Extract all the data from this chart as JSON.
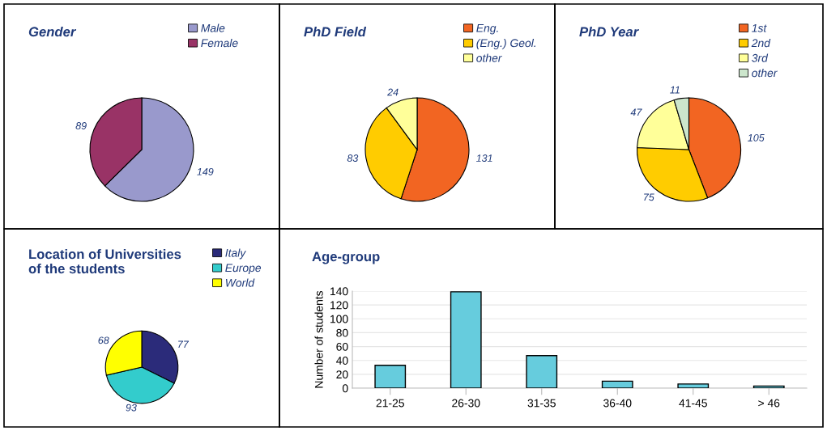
{
  "chart_data": [
    {
      "type": "pie",
      "title": "Gender",
      "categories": [
        "Male",
        "Female"
      ],
      "values": [
        149,
        89
      ],
      "colors": [
        "#9999cc",
        "#993366"
      ],
      "data_labels": true,
      "legend": "top right"
    },
    {
      "type": "pie",
      "title": "PhD Field",
      "categories": [
        "Eng.",
        "(Eng.) Geol.",
        "other"
      ],
      "values": [
        131,
        83,
        24
      ],
      "colors": [
        "#f26522",
        "#ffcc00",
        "#ffff99"
      ],
      "data_labels": true,
      "legend": "top right"
    },
    {
      "type": "pie",
      "title": "PhD Year",
      "categories": [
        "1st",
        "2nd",
        "3rd",
        "other"
      ],
      "values": [
        105,
        75,
        47,
        11
      ],
      "colors": [
        "#f26522",
        "#ffcc00",
        "#ffff99",
        "#cce6cc"
      ],
      "data_labels": true,
      "legend": "top right"
    },
    {
      "type": "pie",
      "title": "Location of Universities\nof the students",
      "categories": [
        "Italy",
        "Europe",
        "World"
      ],
      "values": [
        77,
        93,
        68
      ],
      "colors": [
        "#2b2b7a",
        "#33cccc",
        "#ffff00"
      ],
      "data_labels": true,
      "legend": "top right"
    },
    {
      "type": "bar",
      "title": "Age-group",
      "ylabel": "Number of students",
      "categories": [
        "21-25",
        "26-30",
        "31-35",
        "36-40",
        "41-45",
        "> 46"
      ],
      "values": [
        33,
        139,
        47,
        10,
        6,
        3
      ],
      "color": "#66ccdd",
      "ylim": [
        0,
        140
      ],
      "yticks": [
        0,
        20,
        40,
        60,
        80,
        100,
        120,
        140
      ],
      "grid": "y"
    }
  ]
}
